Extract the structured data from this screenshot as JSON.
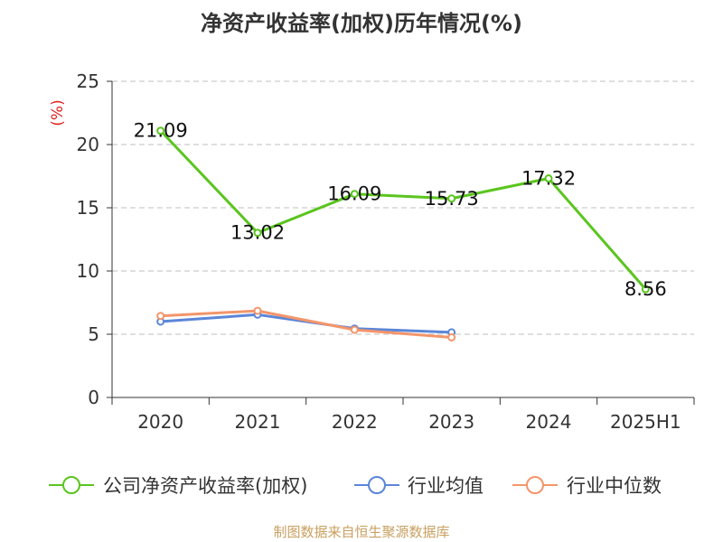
{
  "chart_data": {
    "type": "line",
    "title": "净资产收益率(加权)历年情况(%)",
    "ylabel": "(%)",
    "xlabel": "",
    "categories": [
      "2020",
      "2021",
      "2022",
      "2023",
      "2024",
      "2025H1"
    ],
    "ylim": [
      0,
      25
    ],
    "yticks": [
      0,
      5,
      10,
      15,
      20,
      25
    ],
    "grid": true,
    "legend_position": "bottom",
    "series": [
      {
        "name": "公司净资产收益率(加权)",
        "color": "#5ac51e",
        "values": [
          21.09,
          13.02,
          16.09,
          15.73,
          17.32,
          8.56
        ],
        "labels": [
          "21.09",
          "13.02",
          "16.09",
          "15.73",
          "17.32",
          "8.56"
        ]
      },
      {
        "name": "行业均值",
        "color": "#5b86d8",
        "values": [
          6.0,
          6.55,
          5.45,
          5.15,
          null,
          null
        ]
      },
      {
        "name": "行业中位数",
        "color": "#f4956a",
        "values": [
          6.45,
          6.85,
          5.35,
          4.75,
          null,
          null
        ]
      }
    ]
  },
  "footer": {
    "source": "制图数据来自恒生聚源数据库"
  }
}
